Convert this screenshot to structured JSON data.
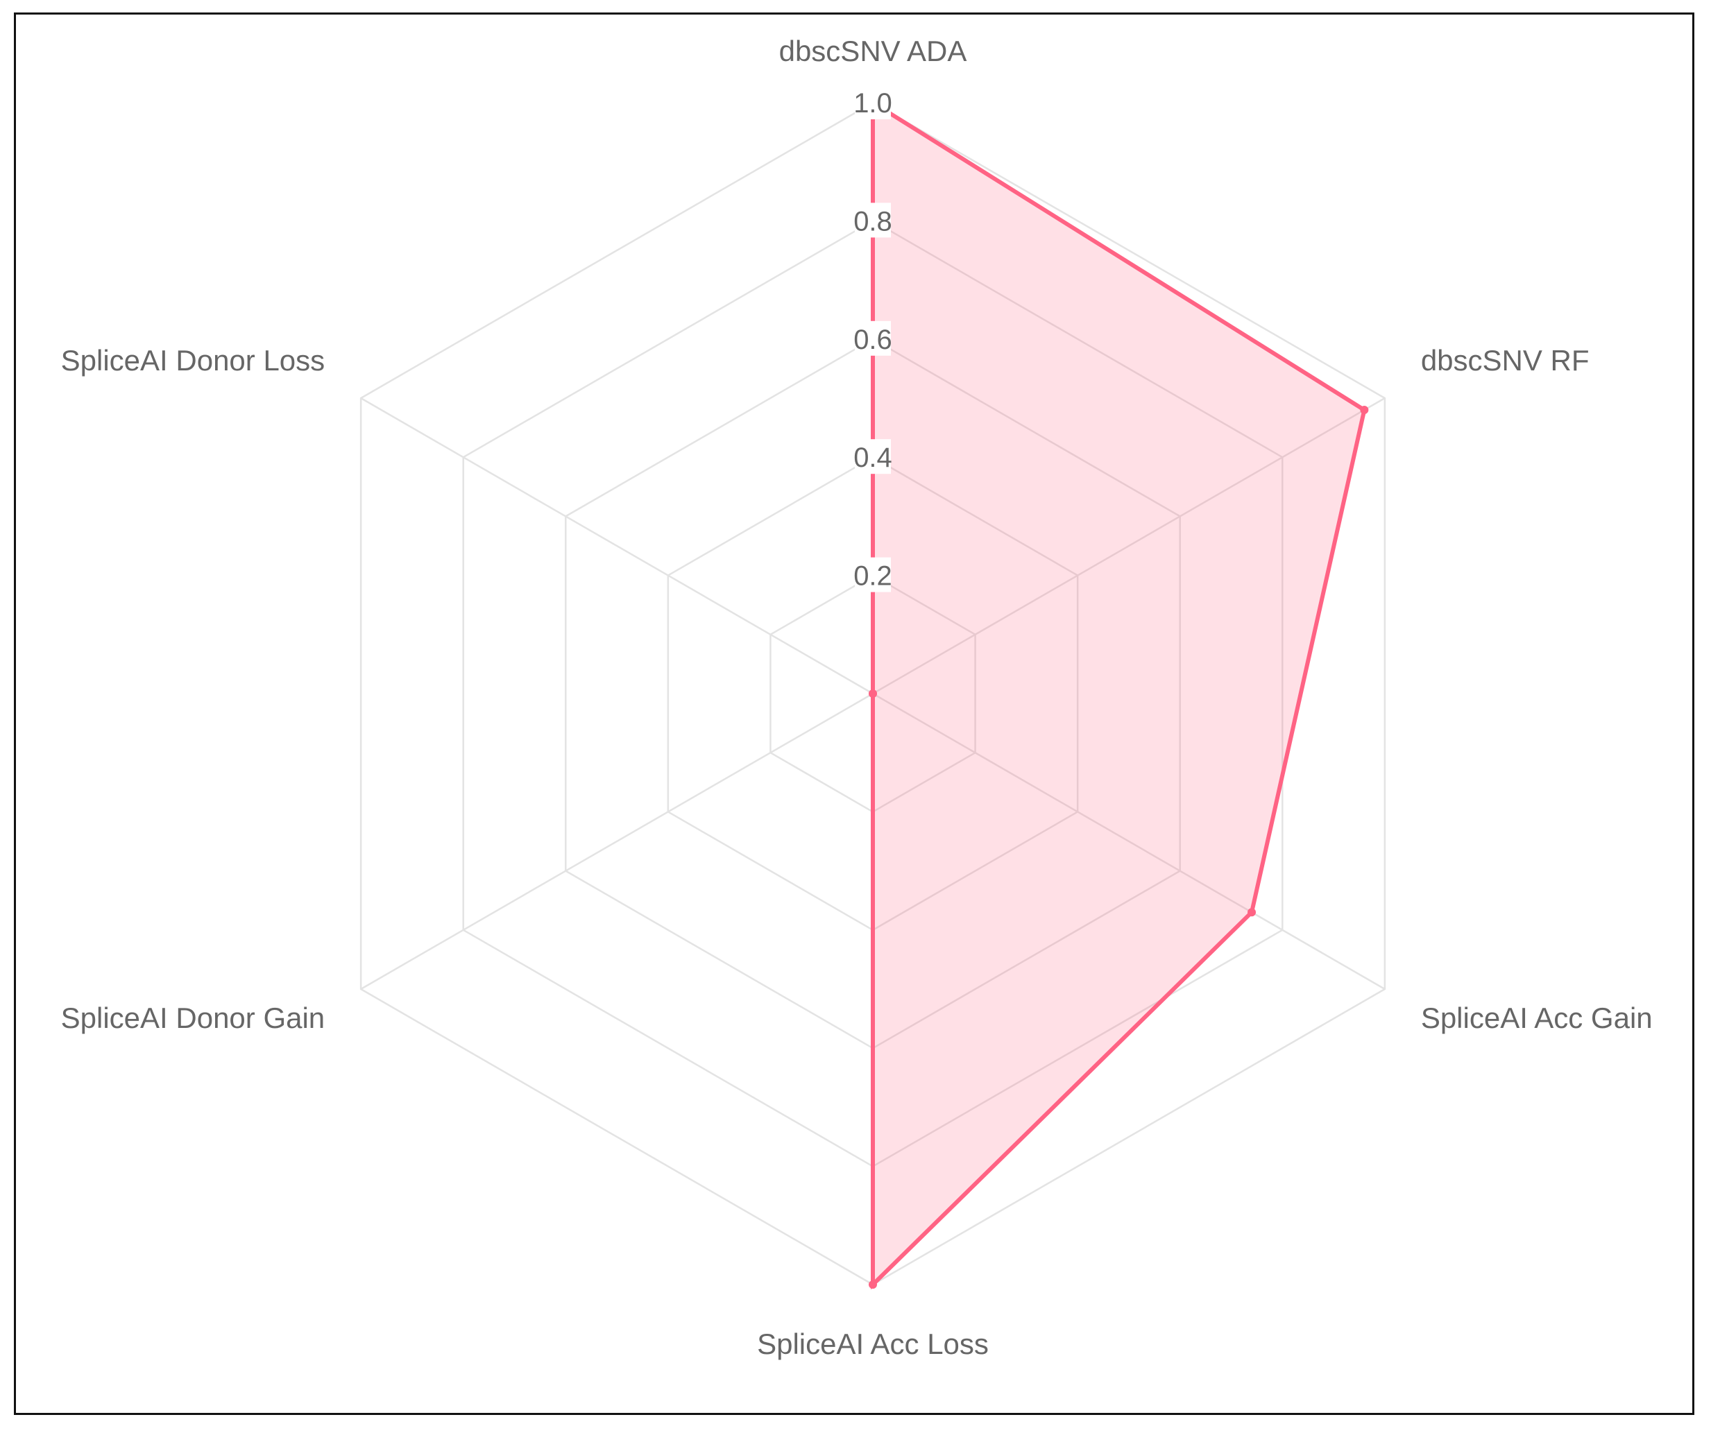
{
  "colors": {
    "series_stroke": "#ff6384",
    "series_fill": "rgba(255, 99, 132, 0.2)",
    "grid": "#e3e3e3",
    "label_text": "#666666",
    "frame_border": "#111111"
  },
  "chart_data": {
    "type": "radar",
    "title": "",
    "axes": [
      "dbscSNV ADA",
      "dbscSNV RF",
      "SpliceAI Acc Gain",
      "SpliceAI Acc Loss",
      "SpliceAI Donor Gain",
      "SpliceAI Donor Loss"
    ],
    "series": [
      {
        "values": [
          1.0,
          0.96,
          0.74,
          1.0,
          0.0,
          0.0
        ]
      }
    ],
    "r_range": [
      0,
      1.0
    ],
    "ticks": [
      "0.2",
      "0.4",
      "0.6",
      "0.8",
      "1.0"
    ],
    "tick_values": [
      0.2,
      0.4,
      0.6,
      0.8,
      1.0
    ],
    "grid": true,
    "legend": "none"
  }
}
